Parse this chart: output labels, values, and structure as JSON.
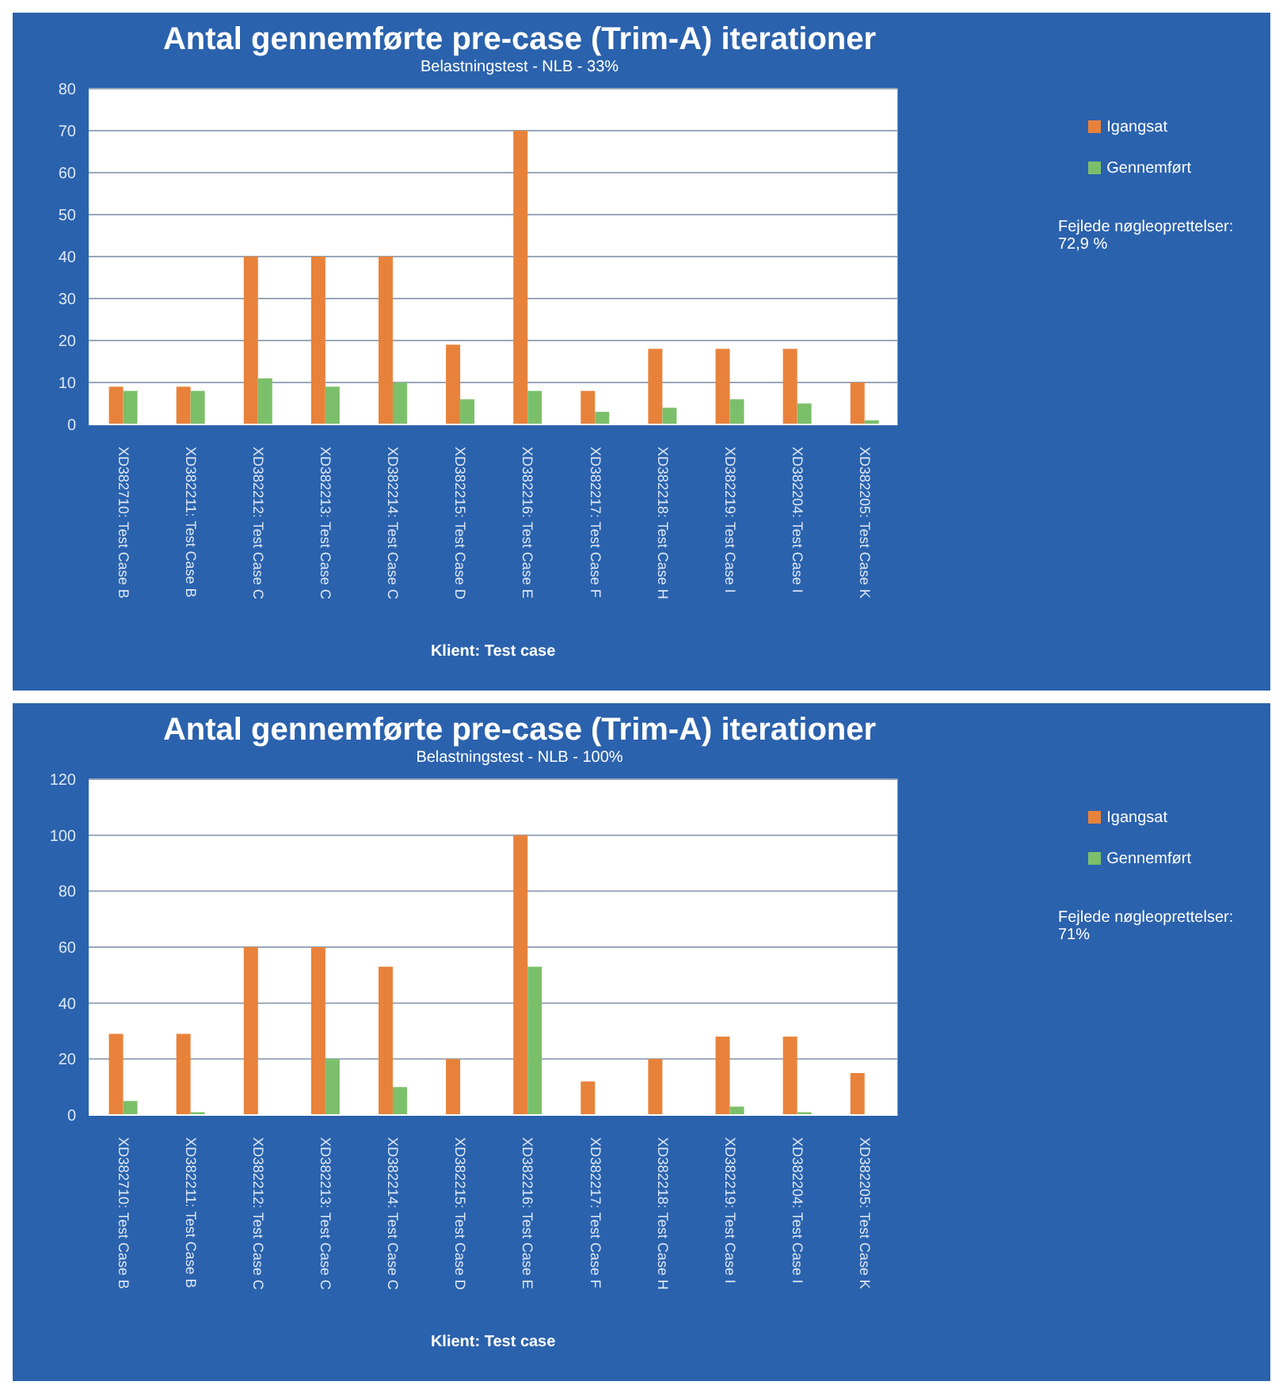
{
  "chart_data": [
    {
      "type": "bar",
      "title": "Antal gennemførte pre-case (Trim-A) iterationer",
      "subtitle": "Belastningstest - NLB - 33%",
      "xlabel": "Klient: Test case",
      "categories": [
        "XD382710: Test Case B",
        "XD382211: Test Case B",
        "XD382212: Test Case C",
        "XD382213: Test Case C",
        "XD382214: Test Case C",
        "XD382215: Test Case D",
        "XD382216: Test Case E",
        "XD382217: Test Case F",
        "XD382218: Test Case H",
        "XD382219: Test Case I",
        "XD382204: Test Case I",
        "XD382205: Test Case K"
      ],
      "series": [
        {
          "name": "Igangsat",
          "color": "#e8823a",
          "values": [
            9,
            9,
            40,
            40,
            40,
            19,
            70,
            8,
            18,
            18,
            18,
            10
          ]
        },
        {
          "name": "Gennemført",
          "color": "#7cbf6a",
          "values": [
            8,
            8,
            11,
            9,
            10,
            6,
            8,
            3,
            4,
            6,
            5,
            1
          ]
        }
      ],
      "ylim": [
        0,
        80
      ],
      "yticks": [
        0,
        10,
        20,
        30,
        40,
        50,
        60,
        70,
        80
      ],
      "grid": "y",
      "legend": "right",
      "annotations": [
        "Fejlede nøgleoprettelser: 72,9 %"
      ]
    },
    {
      "type": "bar",
      "title": "Antal gennemførte pre-case (Trim-A) iterationer",
      "subtitle": "Belastningstest - NLB - 100%",
      "xlabel": "Klient: Test case",
      "categories": [
        "XD382710: Test Case B",
        "XD382211: Test Case B",
        "XD382212: Test Case C",
        "XD382213: Test Case C",
        "XD382214: Test Case C",
        "XD382215: Test Case D",
        "XD382216: Test Case E",
        "XD382217: Test Case F",
        "XD382218: Test Case H",
        "XD382219: Test Case I",
        "XD382204: Test Case I",
        "XD382205: Test Case K"
      ],
      "series": [
        {
          "name": "Igangsat",
          "color": "#e8823a",
          "values": [
            29,
            29,
            60,
            60,
            53,
            20,
            100,
            12,
            20,
            28,
            28,
            15
          ]
        },
        {
          "name": "Gennemført",
          "color": "#7cbf6a",
          "values": [
            5,
            1,
            0,
            20,
            10,
            0,
            53,
            0,
            0,
            3,
            1,
            0
          ]
        }
      ],
      "ylim": [
        0,
        120
      ],
      "yticks": [
        0,
        20,
        40,
        60,
        80,
        100,
        120
      ],
      "grid": "y",
      "legend": "right",
      "annotations": [
        "Fejlede nøgleoprettelser: 71%"
      ]
    }
  ]
}
